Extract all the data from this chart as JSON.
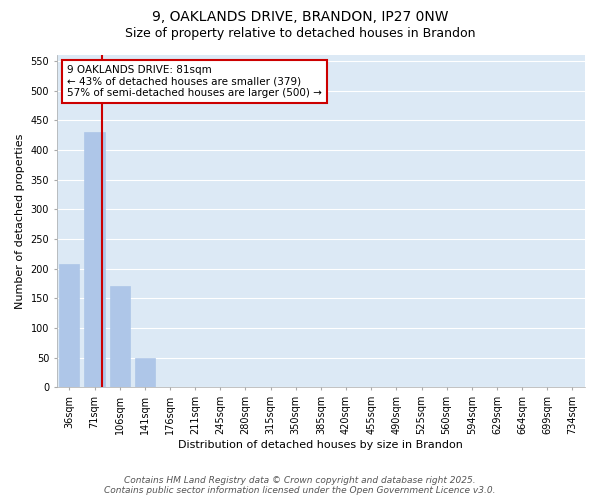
{
  "title1": "9, OAKLANDS DRIVE, BRANDON, IP27 0NW",
  "title2": "Size of property relative to detached houses in Brandon",
  "xlabel": "Distribution of detached houses by size in Brandon",
  "ylabel": "Number of detached properties",
  "categories": [
    "36sqm",
    "71sqm",
    "106sqm",
    "141sqm",
    "176sqm",
    "211sqm",
    "245sqm",
    "280sqm",
    "315sqm",
    "350sqm",
    "385sqm",
    "420sqm",
    "455sqm",
    "490sqm",
    "525sqm",
    "560sqm",
    "594sqm",
    "629sqm",
    "664sqm",
    "699sqm",
    "734sqm"
  ],
  "values": [
    207,
    430,
    170,
    50,
    0,
    0,
    0,
    0,
    0,
    0,
    0,
    0,
    0,
    0,
    0,
    0,
    0,
    0,
    0,
    0,
    0
  ],
  "bar_color": "#aec6e8",
  "bar_edge_color": "#aec6e8",
  "vline_color": "#cc0000",
  "annotation_text": "9 OAKLANDS DRIVE: 81sqm\n← 43% of detached houses are smaller (379)\n57% of semi-detached houses are larger (500) →",
  "annotation_box_color": "#cc0000",
  "annotation_text_color": "#000000",
  "ylim": [
    0,
    560
  ],
  "yticks": [
    0,
    50,
    100,
    150,
    200,
    250,
    300,
    350,
    400,
    450,
    500,
    550
  ],
  "background_color": "#dce9f5",
  "grid_color": "#ffffff",
  "footer1": "Contains HM Land Registry data © Crown copyright and database right 2025.",
  "footer2": "Contains public sector information licensed under the Open Government Licence v3.0.",
  "title_fontsize": 10,
  "subtitle_fontsize": 9,
  "axis_label_fontsize": 8,
  "tick_fontsize": 7,
  "annotation_fontsize": 7.5,
  "footer_fontsize": 6.5
}
